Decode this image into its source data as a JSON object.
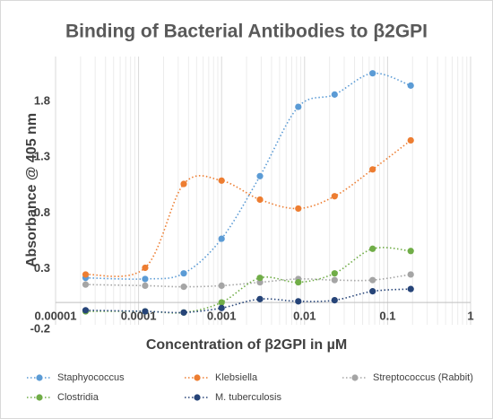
{
  "chart_data": {
    "type": "line",
    "title": "Binding of Bacterial Antibodies to β2GPI",
    "x_label": "Concentration of β2GPI in µM",
    "y_label": "Absorbance @ 405 nm",
    "x_scale": "log",
    "xlim": [
      1e-05,
      1
    ],
    "xticks": [
      1e-05,
      0.0001,
      0.001,
      0.01,
      0.1,
      1
    ],
    "ylim": [
      -0.2,
      2.2
    ],
    "yticks": [
      -0.2,
      0.3,
      0.8,
      1.3,
      1.8
    ],
    "grid": true,
    "legend": "bottom",
    "x": [
      2.3e-05,
      0.00012,
      0.00035,
      0.001,
      0.0029,
      0.0084,
      0.023,
      0.066,
      0.19
    ],
    "series": [
      {
        "name": "Staphyococcus",
        "color": "#5b9bd5",
        "values": [
          0.22,
          0.21,
          0.26,
          0.57,
          1.13,
          1.75,
          1.86,
          2.05,
          1.94
        ]
      },
      {
        "name": "Klebsiella",
        "color": "#ed7d31",
        "values": [
          0.25,
          0.31,
          1.06,
          1.09,
          0.92,
          0.84,
          0.95,
          1.19,
          1.45
        ]
      },
      {
        "name": "Streptococcus (Rabbit)",
        "color": "#a5a5a5",
        "values": [
          0.16,
          0.15,
          0.14,
          0.15,
          0.18,
          0.21,
          0.2,
          0.2,
          0.25
        ]
      },
      {
        "name": "Clostridia",
        "color": "#70ad47",
        "values": [
          -0.08,
          -0.08,
          -0.09,
          0.0,
          0.22,
          0.18,
          0.26,
          0.48,
          0.46
        ]
      },
      {
        "name": "M. tuberculosis",
        "color": "#264478",
        "values": [
          -0.07,
          -0.08,
          -0.09,
          -0.05,
          0.03,
          0.01,
          0.02,
          0.1,
          0.12
        ]
      }
    ]
  }
}
